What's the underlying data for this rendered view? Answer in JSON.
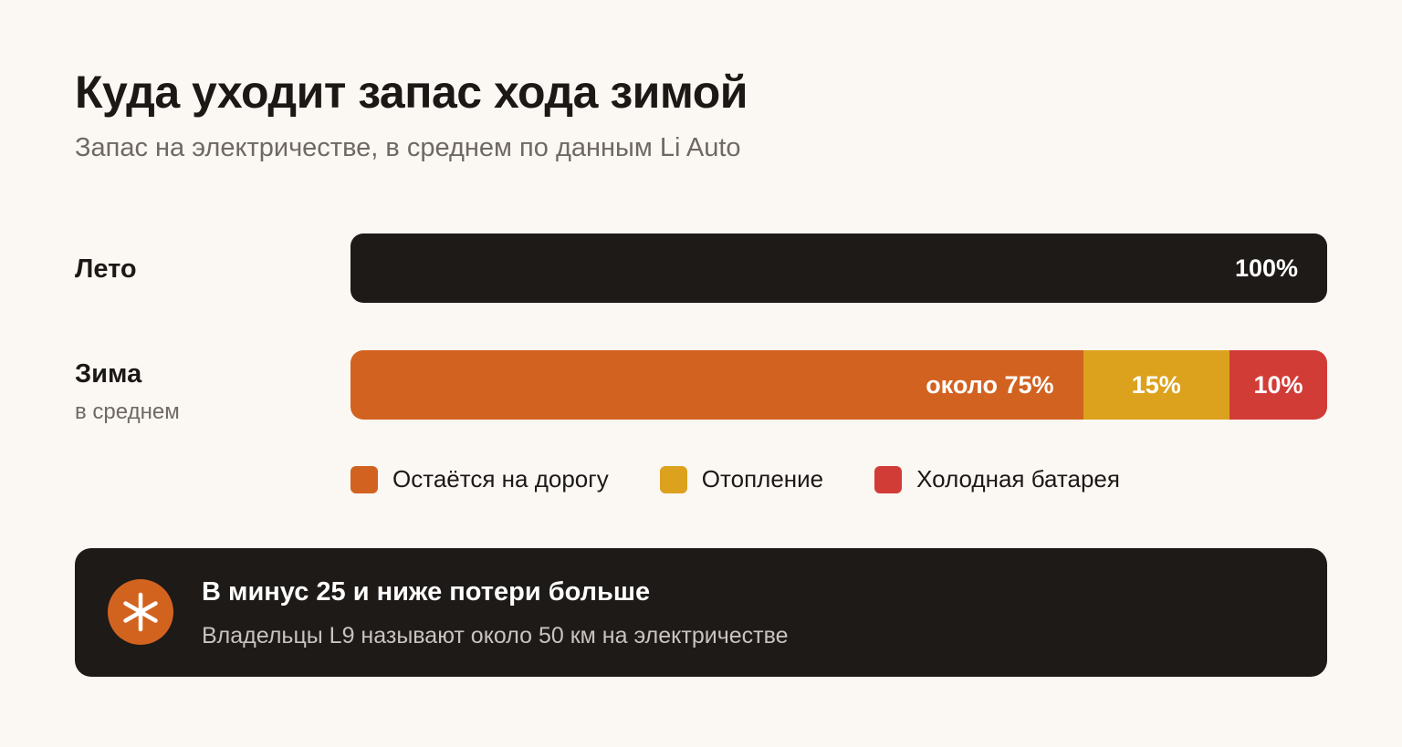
{
  "title": "Куда уходит запас хода зимой",
  "subtitle": "Запас на электричестве, в среднем по данным Li Auto",
  "chart_data": {
    "type": "bar",
    "orientation": "horizontal",
    "stacked": true,
    "categories": [
      "Лето",
      "Зима"
    ],
    "category_sublabels": [
      "",
      "в среднем"
    ],
    "series": [
      {
        "name": "Остаётся на дорогу",
        "values": [
          100,
          75
        ],
        "data_labels": [
          "100%",
          "около 75%"
        ]
      },
      {
        "name": "Отопление",
        "values": [
          0,
          15
        ],
        "data_labels": [
          "",
          "15%"
        ]
      },
      {
        "name": "Холодная батарея",
        "values": [
          0,
          10
        ],
        "data_labels": [
          "",
          "10%"
        ]
      }
    ],
    "xlim": [
      0,
      100
    ],
    "unit": "%",
    "grid": false,
    "legend_position": "bottom",
    "colors": {
      "summer": "#1e1a18",
      "road": "#d2621f",
      "heating": "#dca21e",
      "cold_battery": "#d23c37"
    }
  },
  "legend": [
    {
      "label": "Остаётся на дорогу",
      "color": "#d2621f"
    },
    {
      "label": "Отопление",
      "color": "#dca21e"
    },
    {
      "label": "Холодная батарея",
      "color": "#d23c37"
    }
  ],
  "note": {
    "icon": "snowflake-icon",
    "title": "В минус 25 и ниже потери больше",
    "text": "Владельцы L9 называют около 50 км на электричестве"
  }
}
